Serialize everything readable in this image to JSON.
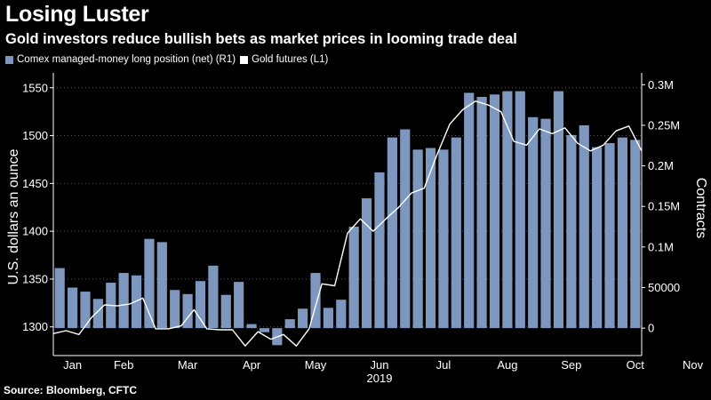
{
  "title": "Losing Luster",
  "subtitle": "Gold investors reduce bullish bets as market prices in looming trade deal",
  "legend": {
    "bar_label": "Comex managed-money long position (net) (R1)",
    "line_label": "Gold futures (L1)"
  },
  "source": "Source: Bloomberg, CFTC",
  "colors": {
    "bar": "#7e97bf",
    "line": "#ffffff",
    "background": "#000000",
    "grid": "#555555"
  },
  "chart_data": {
    "type": "bar",
    "title": "Losing Luster",
    "ylabel": "U.S. dollars an ounce",
    "y2label": "Contracts",
    "ylim": [
      1270,
      1560
    ],
    "y2lim": [
      -33800,
      308000
    ],
    "yticks": [
      1300,
      1350,
      1400,
      1450,
      1500,
      1550
    ],
    "y2ticks": [
      0,
      50000,
      100000,
      150000,
      200000,
      250000,
      300000
    ],
    "y2tick_labels": [
      "0",
      "50000",
      "0.1M",
      "0.15M",
      "0.2M",
      "0.25M",
      "0.3M"
    ],
    "xlabels": [
      "Jan",
      "Feb",
      "Mar",
      "Apr",
      "May",
      "Jun",
      "Jul",
      "Aug",
      "Sep",
      "Oct",
      "Nov"
    ],
    "xlabel_index": [
      1.5,
      5.5,
      10.5,
      15.5,
      20.5,
      25.5,
      30.5,
      35.5,
      40.5,
      45.5,
      50
    ],
    "year_label": "2019",
    "year_under": "Jun",
    "series": [
      {
        "name": "Comex managed-money long position (net)",
        "axis": "right",
        "values": [
          74000,
          50000,
          45000,
          36000,
          56000,
          68000,
          65000,
          110000,
          106000,
          47000,
          42000,
          58000,
          77000,
          41000,
          57000,
          5000,
          -5000,
          -21000,
          11000,
          24000,
          68000,
          25000,
          35000,
          125000,
          160000,
          192000,
          235000,
          245000,
          220000,
          222000,
          220000,
          235000,
          290000,
          285000,
          288000,
          292000,
          292000,
          260000,
          258000,
          292000,
          238000,
          250000,
          223000,
          228000,
          235000,
          232000
        ]
      },
      {
        "name": "Gold futures",
        "axis": "left",
        "values": [
          1293,
          1296,
          1292,
          1310,
          1323,
          1322,
          1324,
          1330,
          1298,
          1298,
          1301,
          1318,
          1298,
          1297,
          1297,
          1280,
          1295,
          1287,
          1292,
          1280,
          1298,
          1345,
          1343,
          1398,
          1413,
          1400,
          1413,
          1425,
          1440,
          1445,
          1480,
          1512,
          1527,
          1536,
          1532,
          1525,
          1494,
          1490,
          1507,
          1502,
          1508,
          1492,
          1484,
          1490,
          1505,
          1510,
          1484
        ]
      }
    ]
  }
}
